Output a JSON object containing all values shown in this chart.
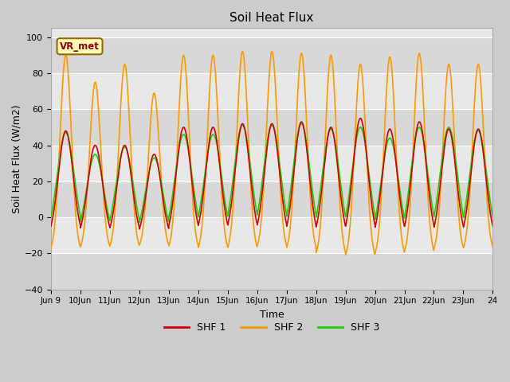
{
  "title": "Soil Heat Flux",
  "xlabel": "Time",
  "ylabel": "Soil Heat Flux (W/m2)",
  "ylim": [
    -40,
    105
  ],
  "yticks": [
    -40,
    -20,
    0,
    20,
    40,
    60,
    80,
    100
  ],
  "shf1_color": "#cc0000",
  "shf2_color": "#ff9900",
  "shf3_color": "#22cc00",
  "legend_label1": "SHF 1",
  "legend_label2": "SHF 2",
  "legend_label3": "SHF 3",
  "annotation_text": "VR_met",
  "n_days": 15,
  "start_day": 9,
  "shf2_peaks": [
    90,
    75,
    85,
    69,
    90,
    90,
    92,
    92,
    91,
    90,
    85,
    89,
    91,
    85,
    85
  ],
  "shf1_peaks": [
    48,
    40,
    40,
    35,
    50,
    50,
    52,
    52,
    53,
    50,
    55,
    49,
    53,
    49,
    49
  ],
  "shf3_peaks": [
    47,
    35,
    39,
    33,
    46,
    46,
    51,
    51,
    52,
    49,
    50,
    44,
    50,
    50,
    48
  ],
  "shf2_nights": [
    -20,
    -19,
    -19,
    -18,
    -19,
    -20,
    -20,
    -19,
    -20,
    -23,
    -24,
    -23,
    -22,
    -20,
    -20
  ],
  "shf1_nights": [
    -13,
    -13,
    -13,
    -13,
    -13,
    -13,
    -13,
    -13,
    -14,
    -14,
    -14,
    -14,
    -14,
    -14,
    -14
  ],
  "shf3_nights": [
    -13,
    -13,
    -13,
    -13,
    -13,
    -13,
    -13,
    -13,
    -14,
    -14,
    -14,
    -14,
    -14,
    -14,
    -14
  ]
}
